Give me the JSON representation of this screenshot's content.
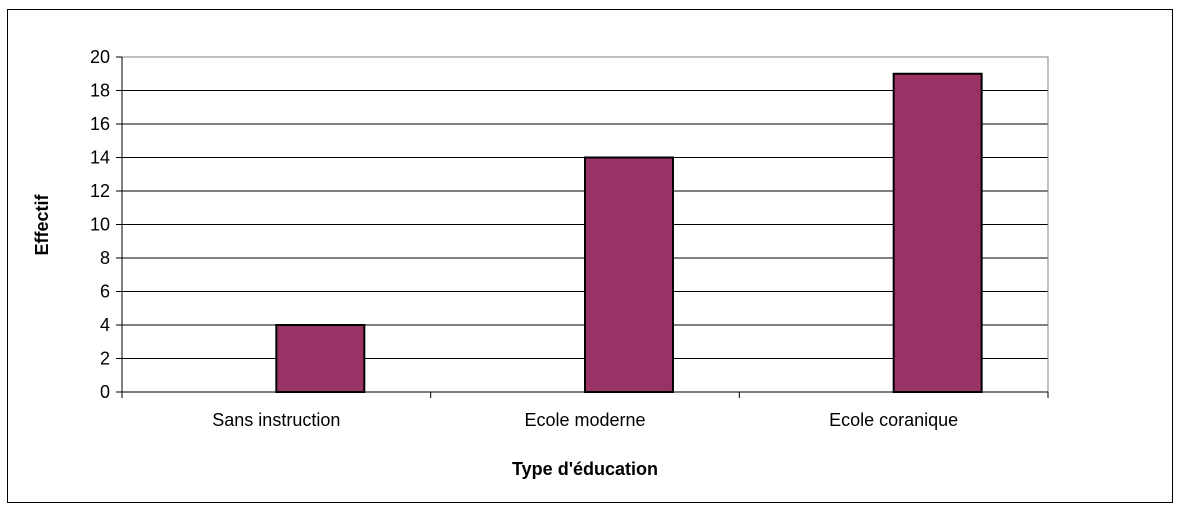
{
  "chart_data": {
    "type": "bar",
    "categories": [
      "Sans instruction",
      "Ecole moderne",
      "Ecole coranique"
    ],
    "values": [
      4,
      14,
      19
    ],
    "xlabel": "Type d'éducation",
    "ylabel": "Effectif",
    "ylim": [
      0,
      20
    ],
    "yticks": [
      0,
      2,
      4,
      6,
      8,
      10,
      12,
      14,
      16,
      18,
      20
    ],
    "grid": true,
    "bar_color": "#993366",
    "legend": "none"
  }
}
